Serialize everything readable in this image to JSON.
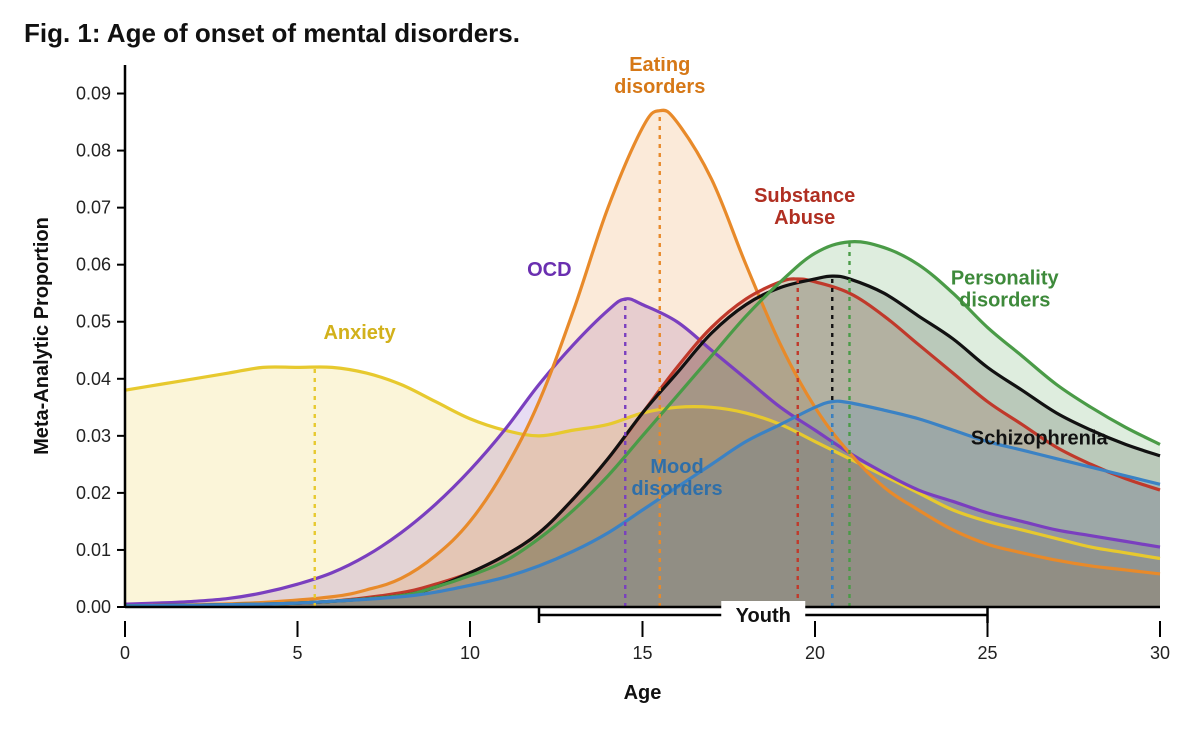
{
  "title": "Fig. 1: Age of onset of mental disorders.",
  "chart": {
    "type": "line-area",
    "background_color": "#ffffff",
    "x": {
      "label": "Age",
      "min": 0,
      "max": 30,
      "ticks": [
        0,
        5,
        10,
        15,
        20,
        25,
        30
      ],
      "label_fontsize": 20,
      "tick_fontsize": 18
    },
    "y": {
      "label": "Meta-Analytic Proportion",
      "min": 0,
      "max": 0.095,
      "ticks": [
        0.0,
        0.01,
        0.02,
        0.03,
        0.04,
        0.05,
        0.06,
        0.07,
        0.08,
        0.09
      ],
      "label_fontsize": 20,
      "tick_fontsize": 18
    },
    "youth_range": {
      "start": 12,
      "end": 25,
      "label": "Youth"
    },
    "line_width": 3.2,
    "peak_dash": "4 5",
    "peak_line_width": 2.4,
    "area_opacity": 0.18,
    "series": [
      {
        "name": "Anxiety",
        "label_lines": [
          "Anxiety"
        ],
        "color": "#e7c92e",
        "text_color": "#d2b11b",
        "peak_x": 5.5,
        "label_pos": {
          "x": 6.8,
          "y": 0.047
        },
        "label_anchor": "middle",
        "points": [
          [
            0,
            0.038
          ],
          [
            1,
            0.039
          ],
          [
            2,
            0.04
          ],
          [
            3,
            0.041
          ],
          [
            4,
            0.042
          ],
          [
            5,
            0.042
          ],
          [
            6,
            0.042
          ],
          [
            7,
            0.041
          ],
          [
            8,
            0.039
          ],
          [
            9,
            0.036
          ],
          [
            10,
            0.033
          ],
          [
            11,
            0.031
          ],
          [
            12,
            0.03
          ],
          [
            13,
            0.031
          ],
          [
            14,
            0.032
          ],
          [
            15,
            0.034
          ],
          [
            16,
            0.035
          ],
          [
            17,
            0.035
          ],
          [
            18,
            0.034
          ],
          [
            19,
            0.032
          ],
          [
            20,
            0.029
          ],
          [
            21,
            0.026
          ],
          [
            22,
            0.023
          ],
          [
            23,
            0.02
          ],
          [
            24,
            0.017
          ],
          [
            25,
            0.015
          ],
          [
            26,
            0.0135
          ],
          [
            27,
            0.012
          ],
          [
            28,
            0.0105
          ],
          [
            29,
            0.0095
          ],
          [
            30,
            0.0085
          ]
        ]
      },
      {
        "name": "OCD",
        "label_lines": [
          "OCD"
        ],
        "color": "#7a3fbf",
        "text_color": "#6a2fb0",
        "peak_x": 14.5,
        "label_pos": {
          "x": 12.3,
          "y": 0.058
        },
        "label_anchor": "middle",
        "points": [
          [
            0,
            0.0005
          ],
          [
            1,
            0.0007
          ],
          [
            2,
            0.001
          ],
          [
            3,
            0.0015
          ],
          [
            4,
            0.0025
          ],
          [
            5,
            0.004
          ],
          [
            6,
            0.006
          ],
          [
            7,
            0.009
          ],
          [
            8,
            0.013
          ],
          [
            9,
            0.018
          ],
          [
            10,
            0.024
          ],
          [
            11,
            0.031
          ],
          [
            12,
            0.039
          ],
          [
            13,
            0.046
          ],
          [
            14,
            0.052
          ],
          [
            14.5,
            0.054
          ],
          [
            15,
            0.053
          ],
          [
            16,
            0.05
          ],
          [
            17,
            0.045
          ],
          [
            18,
            0.04
          ],
          [
            19,
            0.035
          ],
          [
            20,
            0.031
          ],
          [
            21,
            0.027
          ],
          [
            22,
            0.0235
          ],
          [
            23,
            0.0205
          ],
          [
            24,
            0.0185
          ],
          [
            25,
            0.0165
          ],
          [
            26,
            0.015
          ],
          [
            27,
            0.0135
          ],
          [
            28,
            0.0125
          ],
          [
            29,
            0.0115
          ],
          [
            30,
            0.0105
          ]
        ]
      },
      {
        "name": "Eating disorders",
        "label_lines": [
          "Eating",
          "disorders"
        ],
        "color": "#e88a2a",
        "text_color": "#d67817",
        "peak_x": 15.5,
        "label_pos": {
          "x": 15.5,
          "y": 0.098
        },
        "label_anchor": "middle",
        "points": [
          [
            0,
            0.0002
          ],
          [
            2,
            0.0004
          ],
          [
            4,
            0.0008
          ],
          [
            6,
            0.0018
          ],
          [
            7,
            0.003
          ],
          [
            8,
            0.005
          ],
          [
            9,
            0.009
          ],
          [
            10,
            0.015
          ],
          [
            11,
            0.024
          ],
          [
            12,
            0.036
          ],
          [
            13,
            0.052
          ],
          [
            14,
            0.07
          ],
          [
            15,
            0.084
          ],
          [
            15.5,
            0.087
          ],
          [
            16,
            0.085
          ],
          [
            17,
            0.075
          ],
          [
            18,
            0.06
          ],
          [
            19,
            0.046
          ],
          [
            20,
            0.035
          ],
          [
            21,
            0.027
          ],
          [
            22,
            0.021
          ],
          [
            23,
            0.017
          ],
          [
            24,
            0.0135
          ],
          [
            25,
            0.011
          ],
          [
            26,
            0.0095
          ],
          [
            27,
            0.0082
          ],
          [
            28,
            0.0072
          ],
          [
            29,
            0.0065
          ],
          [
            30,
            0.0058
          ]
        ]
      },
      {
        "name": "Substance Abuse",
        "label_lines": [
          "Substance",
          "Abuse"
        ],
        "color": "#c0392b",
        "text_color": "#b02f22",
        "peak_x": 19.5,
        "label_pos": {
          "x": 19.7,
          "y": 0.071
        },
        "label_anchor": "middle",
        "points": [
          [
            0,
            0.0002
          ],
          [
            4,
            0.0005
          ],
          [
            6,
            0.001
          ],
          [
            8,
            0.0025
          ],
          [
            9,
            0.004
          ],
          [
            10,
            0.006
          ],
          [
            11,
            0.009
          ],
          [
            12,
            0.013
          ],
          [
            13,
            0.019
          ],
          [
            14,
            0.026
          ],
          [
            15,
            0.034
          ],
          [
            16,
            0.042
          ],
          [
            17,
            0.049
          ],
          [
            18,
            0.054
          ],
          [
            19,
            0.057
          ],
          [
            19.5,
            0.0575
          ],
          [
            20,
            0.057
          ],
          [
            21,
            0.055
          ],
          [
            22,
            0.051
          ],
          [
            23,
            0.046
          ],
          [
            24,
            0.041
          ],
          [
            25,
            0.036
          ],
          [
            26,
            0.032
          ],
          [
            27,
            0.028
          ],
          [
            28,
            0.025
          ],
          [
            29,
            0.0225
          ],
          [
            30,
            0.0205
          ]
        ]
      },
      {
        "name": "Schizophrenia",
        "label_lines": [
          "Schizophrenia"
        ],
        "color": "#111111",
        "text_color": "#111111",
        "peak_x": 20.5,
        "label_pos": {
          "x": 26.5,
          "y": 0.0285
        },
        "label_anchor": "middle",
        "points": [
          [
            0,
            0.0002
          ],
          [
            4,
            0.0005
          ],
          [
            6,
            0.001
          ],
          [
            8,
            0.002
          ],
          [
            9,
            0.0035
          ],
          [
            10,
            0.006
          ],
          [
            11,
            0.009
          ],
          [
            12,
            0.013
          ],
          [
            13,
            0.019
          ],
          [
            14,
            0.026
          ],
          [
            15,
            0.034
          ],
          [
            16,
            0.041
          ],
          [
            17,
            0.048
          ],
          [
            18,
            0.053
          ],
          [
            19,
            0.056
          ],
          [
            20,
            0.0575
          ],
          [
            20.5,
            0.058
          ],
          [
            21,
            0.0575
          ],
          [
            22,
            0.055
          ],
          [
            23,
            0.051
          ],
          [
            24,
            0.047
          ],
          [
            25,
            0.042
          ],
          [
            26,
            0.038
          ],
          [
            27,
            0.034
          ],
          [
            28,
            0.031
          ],
          [
            29,
            0.0285
          ],
          [
            30,
            0.0265
          ]
        ]
      },
      {
        "name": "Personality disorders",
        "label_lines": [
          "Personality",
          "disorders"
        ],
        "color": "#4a9b47",
        "text_color": "#3e8a3b",
        "peak_x": 21,
        "label_pos": {
          "x": 25.5,
          "y": 0.0565
        },
        "label_anchor": "middle",
        "points": [
          [
            0,
            0.0002
          ],
          [
            4,
            0.0005
          ],
          [
            6,
            0.001
          ],
          [
            8,
            0.002
          ],
          [
            9,
            0.0035
          ],
          [
            10,
            0.0055
          ],
          [
            11,
            0.008
          ],
          [
            12,
            0.012
          ],
          [
            13,
            0.017
          ],
          [
            14,
            0.023
          ],
          [
            15,
            0.03
          ],
          [
            16,
            0.037
          ],
          [
            17,
            0.044
          ],
          [
            18,
            0.051
          ],
          [
            19,
            0.057
          ],
          [
            20,
            0.062
          ],
          [
            21,
            0.064
          ],
          [
            22,
            0.063
          ],
          [
            23,
            0.06
          ],
          [
            24,
            0.055
          ],
          [
            25,
            0.049
          ],
          [
            26,
            0.044
          ],
          [
            27,
            0.039
          ],
          [
            28,
            0.035
          ],
          [
            29,
            0.0315
          ],
          [
            30,
            0.0285
          ]
        ]
      },
      {
        "name": "Mood disorders",
        "label_lines": [
          "Mood",
          "disorders"
        ],
        "color": "#3b82c4",
        "text_color": "#2f6fa9",
        "peak_x": 20.5,
        "label_pos": {
          "x": 16.0,
          "y": 0.0235
        },
        "label_anchor": "middle",
        "points": [
          [
            0,
            0.0002
          ],
          [
            4,
            0.0005
          ],
          [
            6,
            0.001
          ],
          [
            8,
            0.0018
          ],
          [
            9,
            0.0026
          ],
          [
            10,
            0.0038
          ],
          [
            11,
            0.0052
          ],
          [
            12,
            0.0072
          ],
          [
            13,
            0.0098
          ],
          [
            14,
            0.013
          ],
          [
            15,
            0.017
          ],
          [
            16,
            0.021
          ],
          [
            17,
            0.025
          ],
          [
            18,
            0.029
          ],
          [
            19,
            0.032
          ],
          [
            20,
            0.035
          ],
          [
            20.5,
            0.036
          ],
          [
            21,
            0.0358
          ],
          [
            22,
            0.0345
          ],
          [
            23,
            0.033
          ],
          [
            24,
            0.031
          ],
          [
            25,
            0.029
          ],
          [
            26,
            0.0275
          ],
          [
            27,
            0.026
          ],
          [
            28,
            0.0245
          ],
          [
            29,
            0.023
          ],
          [
            30,
            0.0215
          ]
        ]
      }
    ]
  }
}
